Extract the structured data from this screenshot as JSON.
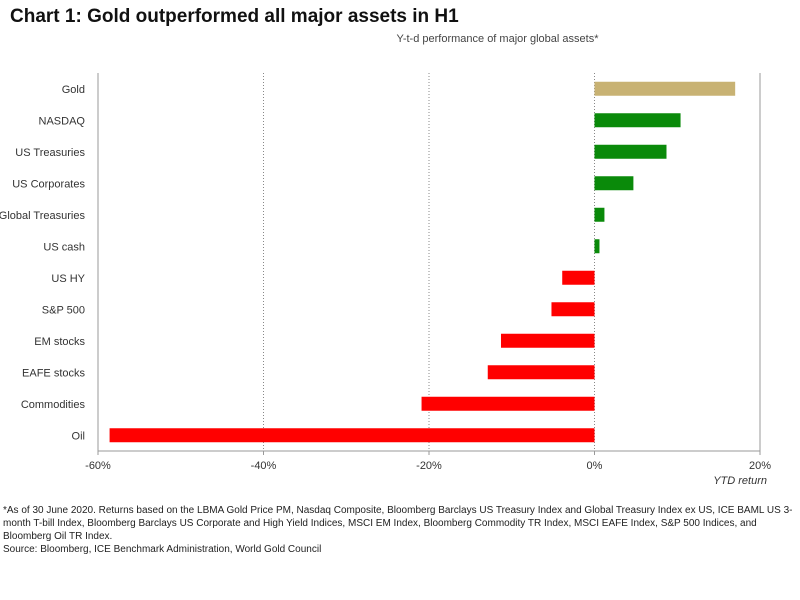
{
  "chart_title": "Chart 1: Gold outperformed all major assets in H1",
  "chart_subtitle": "Y-t-d performance of major global assets*",
  "footnote": {
    "note": "*As of 30 June 2020. Returns based on the LBMA Gold Price PM, Nasdaq Composite, Bloomberg Barclays US Treasury Index and Global Treasury Index ex US, ICE BAML US 3-month T-bill Index, Bloomberg Barclays US Corporate and High Yield Indices, MSCI EM Index, Bloomberg Commodity TR Index, MSCI EAFE Index, S&P 500 Indices, and Bloomberg Oil TR Index.",
    "source": "Source: Bloomberg, ICE Benchmark Administration, World Gold Council"
  },
  "colors": {
    "gold": "#c8b273",
    "positive": "#0a8a0a",
    "negative": "#ff0000",
    "axis": "#999999",
    "grid": "#888888"
  },
  "chart_data": {
    "type": "bar",
    "orientation": "horizontal",
    "categories": [
      "Gold",
      "NASDAQ",
      "US Treasuries",
      "US Corporates",
      "Global Treasuries",
      "US cash",
      "US HY",
      "S&P 500",
      "EM stocks",
      "EAFE stocks",
      "Commodities",
      "Oil"
    ],
    "values": [
      17.0,
      10.4,
      8.7,
      4.7,
      1.2,
      0.6,
      -3.9,
      -5.2,
      -11.3,
      -12.9,
      -20.9,
      -58.6
    ],
    "xlim": [
      -60,
      20
    ],
    "xticks": [
      -60,
      -40,
      -20,
      0,
      20
    ],
    "xtick_labels": [
      "-60%",
      "-40%",
      "-20%",
      "0%",
      "20%"
    ],
    "xlabel": "YTD return",
    "ylabel": "",
    "grid": "vertical dotted",
    "legend": "none"
  }
}
